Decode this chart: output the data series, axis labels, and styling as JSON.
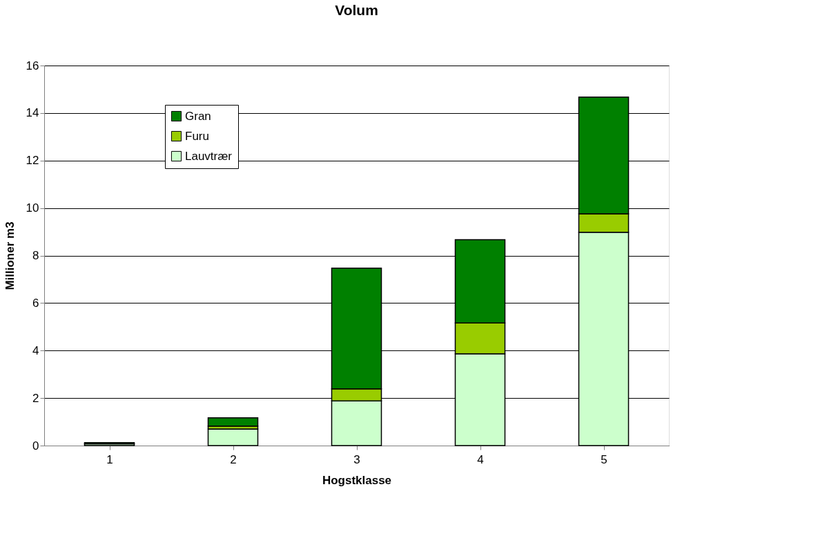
{
  "chart_data": {
    "type": "bar",
    "title": "Volum",
    "xlabel": "Hogstklasse",
    "ylabel": "Millioner m3",
    "categories": [
      "1",
      "2",
      "3",
      "4",
      "5"
    ],
    "stacked": true,
    "series": [
      {
        "name": "Lauvtrær",
        "color": "#ccffcc",
        "values": [
          0.07,
          0.7,
          1.88,
          3.86,
          8.98
        ]
      },
      {
        "name": "Furu",
        "color": "#99cc00",
        "values": [
          null,
          0.12,
          0.51,
          1.3,
          0.78
        ]
      },
      {
        "name": "Gran",
        "color": "#008000",
        "values": [
          0.05,
          0.35,
          5.08,
          3.51,
          4.91
        ]
      }
    ],
    "ylim": [
      0,
      16
    ],
    "yticks": [
      0,
      2,
      4,
      6,
      8,
      10,
      12,
      14,
      16
    ],
    "grid": "y",
    "legend": "top left"
  }
}
